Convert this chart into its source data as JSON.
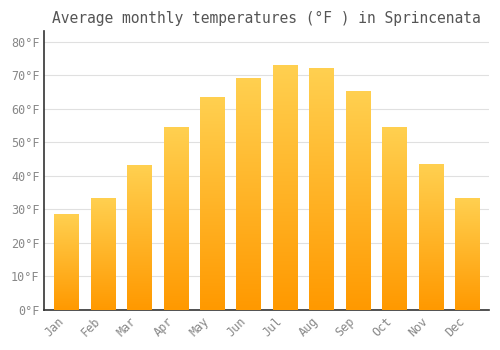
{
  "title": "Average monthly temperatures (°F ) in Sprincenata",
  "months": [
    "Jan",
    "Feb",
    "Mar",
    "Apr",
    "May",
    "Jun",
    "Jul",
    "Aug",
    "Sep",
    "Oct",
    "Nov",
    "Dec"
  ],
  "values": [
    28.5,
    33.3,
    43.0,
    54.3,
    63.5,
    69.0,
    73.0,
    72.0,
    65.3,
    54.5,
    43.5,
    33.3
  ],
  "bar_color": "#FFAA00",
  "bar_color_top": "#FFD040",
  "bar_edge_color": "#E09000",
  "background_color": "#FFFFFF",
  "grid_color": "#E0E0E0",
  "text_color": "#888888",
  "title_color": "#555555",
  "spine_color": "#333333",
  "ylim": [
    0,
    83
  ],
  "ytick_interval": 10,
  "title_fontsize": 10.5,
  "tick_fontsize": 8.5
}
